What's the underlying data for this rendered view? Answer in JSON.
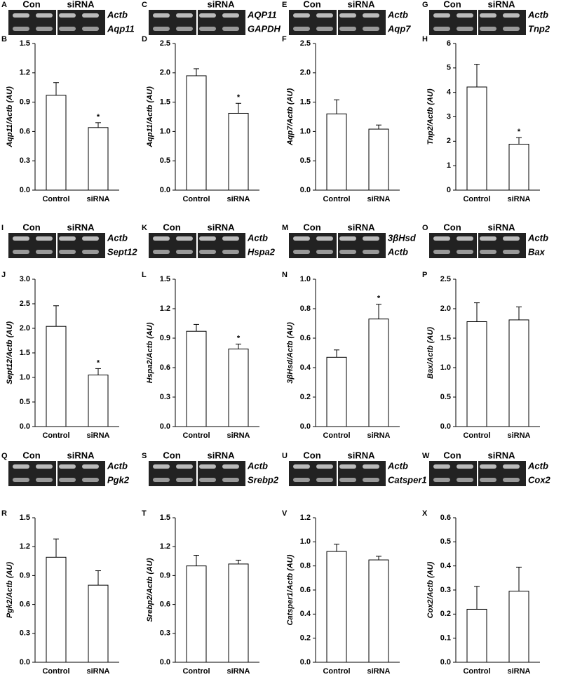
{
  "chart_data": [
    {
      "type": "bar",
      "panel": "B",
      "ylabel": "Aqp11/Actb (AU)",
      "categories": [
        "Control",
        "siRNA"
      ],
      "values": [
        0.97,
        0.64
      ],
      "errors": [
        0.13,
        0.05
      ],
      "markers": [
        null,
        "*"
      ],
      "color": "#ffffff",
      "ylim": [
        0,
        1.5
      ],
      "yticks": [
        {
          "value": 0,
          "label": "0.0"
        },
        0.3,
        0.6,
        0.9,
        1.2,
        1.5
      ]
    },
    {
      "type": "bar",
      "panel": "D",
      "ylabel": "Aqp11/Actb (AU)",
      "categories": [
        "Control",
        "siRNA"
      ],
      "values": [
        1.95,
        1.31
      ],
      "errors": [
        0.12,
        0.17
      ],
      "markers": [
        null,
        "*"
      ],
      "color": "#ffffff",
      "ylim": [
        0,
        2.5
      ],
      "yticks": [
        {
          "value": 0,
          "label": "0.0"
        },
        0.5,
        {
          "value": 1,
          "label": "1.0"
        },
        1.5,
        {
          "value": 2,
          "label": "2.0"
        },
        2.5
      ]
    },
    {
      "type": "bar",
      "panel": "F",
      "ylabel": "Aqp7/Actb (AU)",
      "categories": [
        "Control",
        "siRNA"
      ],
      "values": [
        1.3,
        1.04
      ],
      "errors": [
        0.24,
        0.07
      ],
      "markers": [
        null,
        null
      ],
      "color": "#ffffff",
      "ylim": [
        0,
        2.5
      ],
      "yticks": [
        {
          "value": 0,
          "label": "0.0"
        },
        0.5,
        {
          "value": 1,
          "label": "1.0"
        },
        1.5,
        {
          "value": 2,
          "label": "2.0"
        },
        2.5
      ]
    },
    {
      "type": "bar",
      "panel": "H",
      "ylabel": "Tnp2/Actb (AU)",
      "categories": [
        "Control",
        "siRNA"
      ],
      "values": [
        4.22,
        1.88
      ],
      "errors": [
        0.93,
        0.27
      ],
      "markers": [
        null,
        "*"
      ],
      "color": "#ffffff",
      "ylim": [
        0,
        6
      ],
      "yticks": [
        0,
        1,
        2,
        3,
        4,
        5,
        6
      ]
    },
    {
      "type": "bar",
      "panel": "J",
      "ylabel": "Sept12/Actb (AU)",
      "categories": [
        "Control",
        "siRNA"
      ],
      "values": [
        2.04,
        1.05
      ],
      "errors": [
        0.42,
        0.13
      ],
      "markers": [
        null,
        "*"
      ],
      "color": "#ffffff",
      "ylim": [
        0,
        3
      ],
      "yticks": [
        {
          "value": 0,
          "label": "0.0"
        },
        0.5,
        {
          "value": 1,
          "label": "1.0"
        },
        1.5,
        {
          "value": 2,
          "label": "2.0"
        },
        2.5,
        {
          "value": 3,
          "label": "3.0"
        }
      ]
    },
    {
      "type": "bar",
      "panel": "L",
      "ylabel": "Hspa2/Actb (AU)",
      "categories": [
        "Control",
        "siRNA"
      ],
      "values": [
        0.97,
        0.79
      ],
      "errors": [
        0.07,
        0.05
      ],
      "markers": [
        null,
        "*"
      ],
      "color": "#ffffff",
      "ylim": [
        0,
        1.5
      ],
      "yticks": [
        {
          "value": 0,
          "label": "0.0"
        },
        0.3,
        0.6,
        0.9,
        1.2,
        1.5
      ]
    },
    {
      "type": "bar",
      "panel": "N",
      "ylabel": "3βHsd/Actb (AU)",
      "categories": [
        "Control",
        "siRNA"
      ],
      "values": [
        0.47,
        0.73
      ],
      "errors": [
        0.05,
        0.1
      ],
      "markers": [
        null,
        "*"
      ],
      "color": "#ffffff",
      "ylim": [
        0,
        1
      ],
      "yticks": [
        {
          "value": 0,
          "label": "0.0"
        },
        0.2,
        0.4,
        0.6,
        0.8,
        {
          "value": 1,
          "label": "1.0"
        }
      ]
    },
    {
      "type": "bar",
      "panel": "P",
      "ylabel": "Bax/Actb (AU)",
      "categories": [
        "Control",
        "siRNA"
      ],
      "values": [
        1.78,
        1.81
      ],
      "errors": [
        0.32,
        0.22
      ],
      "markers": [
        null,
        null
      ],
      "color": "#ffffff",
      "ylim": [
        0,
        2.5
      ],
      "yticks": [
        {
          "value": 0,
          "label": "0.0"
        },
        0.5,
        {
          "value": 1,
          "label": "1.0"
        },
        1.5,
        {
          "value": 2,
          "label": "2.0"
        },
        2.5
      ]
    },
    {
      "type": "bar",
      "panel": "R",
      "ylabel": "Pgk2/Actb (AU)",
      "categories": [
        "Control",
        "siRNA"
      ],
      "values": [
        1.09,
        0.8
      ],
      "errors": [
        0.19,
        0.15
      ],
      "markers": [
        null,
        null
      ],
      "color": "#ffffff",
      "ylim": [
        0,
        1.5
      ],
      "yticks": [
        {
          "value": 0,
          "label": "0.0"
        },
        0.3,
        0.6,
        0.9,
        1.2,
        1.5
      ]
    },
    {
      "type": "bar",
      "panel": "T",
      "ylabel": "Srebp2/Actb (AU)",
      "categories": [
        "Control",
        "siRNA"
      ],
      "values": [
        1.0,
        1.02
      ],
      "errors": [
        0.11,
        0.04
      ],
      "markers": [
        null,
        null
      ],
      "color": "#ffffff",
      "ylim": [
        0,
        1.5
      ],
      "yticks": [
        {
          "value": 0,
          "label": "0.0"
        },
        0.3,
        0.6,
        0.9,
        1.2,
        1.5
      ]
    },
    {
      "type": "bar",
      "panel": "V",
      "ylabel": "Catsper1/Actb (AU)",
      "categories": [
        "Control",
        "siRNA"
      ],
      "values": [
        0.92,
        0.85
      ],
      "errors": [
        0.06,
        0.03
      ],
      "markers": [
        null,
        null
      ],
      "color": "#ffffff",
      "ylim": [
        0,
        1.2
      ],
      "yticks": [
        {
          "value": 0,
          "label": "0.0"
        },
        0.2,
        0.4,
        0.6,
        0.8,
        {
          "value": 1,
          "label": "1.0"
        },
        1.2
      ]
    },
    {
      "type": "bar",
      "panel": "X",
      "ylabel": "Cox2/Actb (AU)",
      "categories": [
        "Control",
        "siRNA"
      ],
      "values": [
        0.22,
        0.295
      ],
      "errors": [
        0.095,
        0.1
      ],
      "markers": [
        null,
        null
      ],
      "color": "#ffffff",
      "ylim": [
        0,
        0.6
      ],
      "yticks": [
        {
          "value": 0,
          "label": "0.0"
        },
        0.1,
        0.2,
        0.3,
        0.4,
        0.5,
        0.6
      ]
    }
  ],
  "gels": [
    {
      "panel": "A",
      "lanes": [
        "Con",
        "siRNA"
      ],
      "genes": [
        "Actb",
        "Aqp11"
      ]
    },
    {
      "panel": "C",
      "lanes": [
        "siRNA"
      ],
      "genes": [
        "AQP11",
        "GAPDH"
      ]
    },
    {
      "panel": "E",
      "lanes": [
        "Con",
        "siRNA"
      ],
      "genes": [
        "Actb",
        "Aqp7"
      ]
    },
    {
      "panel": "G",
      "lanes": [
        "Con",
        "siRNA"
      ],
      "genes": [
        "Actb",
        "Tnp2"
      ]
    },
    {
      "panel": "I",
      "lanes": [
        "Con",
        "siRNA"
      ],
      "genes": [
        "Actb",
        "Sept12"
      ]
    },
    {
      "panel": "K",
      "lanes": [
        "Con",
        "siRNA"
      ],
      "genes": [
        "Actb",
        "Hspa2"
      ]
    },
    {
      "panel": "M",
      "lanes": [
        "Con",
        "siRNA"
      ],
      "genes": [
        "3βHsd",
        "Actb"
      ]
    },
    {
      "panel": "O",
      "lanes": [
        "Con",
        "siRNA"
      ],
      "genes": [
        "Actb",
        "Bax"
      ]
    },
    {
      "panel": "Q",
      "lanes": [
        "Con",
        "siRNA"
      ],
      "genes": [
        "Actb",
        "Pgk2"
      ]
    },
    {
      "panel": "S",
      "lanes": [
        "Con",
        "siRNA"
      ],
      "genes": [
        "Actb",
        "Srebp2"
      ]
    },
    {
      "panel": "U",
      "lanes": [
        "Con",
        "siRNA"
      ],
      "genes": [
        "Actb",
        "Catsper1"
      ]
    },
    {
      "panel": "W",
      "lanes": [
        "Con",
        "siRNA"
      ],
      "genes": [
        "Actb",
        "Cox2"
      ]
    }
  ]
}
